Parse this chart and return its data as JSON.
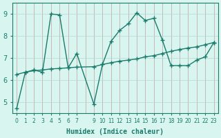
{
  "line1_x": [
    0,
    1,
    2,
    3,
    4,
    5,
    6,
    7,
    9,
    10,
    11,
    12,
    13,
    14,
    15,
    16,
    17,
    18,
    19,
    20,
    21,
    22,
    23
  ],
  "line1_y": [
    4.72,
    6.35,
    6.45,
    6.35,
    9.0,
    8.95,
    6.55,
    7.2,
    4.9,
    6.7,
    7.75,
    8.25,
    8.55,
    9.05,
    8.7,
    8.8,
    7.8,
    6.65,
    6.65,
    6.65,
    6.9,
    7.05,
    7.7
  ],
  "line2_x": [
    0,
    1,
    2,
    3,
    4,
    5,
    6,
    7,
    9,
    10,
    11,
    12,
    13,
    14,
    15,
    16,
    17,
    18,
    19,
    20,
    21,
    22,
    23
  ],
  "line2_y": [
    6.25,
    6.35,
    6.42,
    6.45,
    6.5,
    6.52,
    6.55,
    6.58,
    6.6,
    6.7,
    6.78,
    6.85,
    6.9,
    6.95,
    7.05,
    7.1,
    7.2,
    7.3,
    7.38,
    7.45,
    7.5,
    7.6,
    7.7
  ],
  "line_color": "#1a7a6a",
  "bg_color": "#d8f5f0",
  "grid_color_v": "#c0a0a0",
  "grid_color_h": "#b0d8d0",
  "xlabel": "Humidex (Indice chaleur)",
  "ylim": [
    4.5,
    9.5
  ],
  "xlim": [
    -0.5,
    23.5
  ],
  "yticks": [
    5,
    6,
    7,
    8,
    9
  ],
  "xtick_positions": [
    0,
    1,
    2,
    3,
    4,
    5,
    6,
    7,
    9,
    10,
    11,
    12,
    13,
    14,
    15,
    16,
    17,
    18,
    19,
    20,
    21,
    22,
    23
  ],
  "xtick_labels": [
    "0",
    "1",
    "2",
    "3",
    "4",
    "5",
    "6",
    "7",
    "9",
    "10",
    "11",
    "12",
    "13",
    "14",
    "15",
    "16",
    "17",
    "18",
    "19",
    "20",
    "21",
    "22",
    "23"
  ]
}
